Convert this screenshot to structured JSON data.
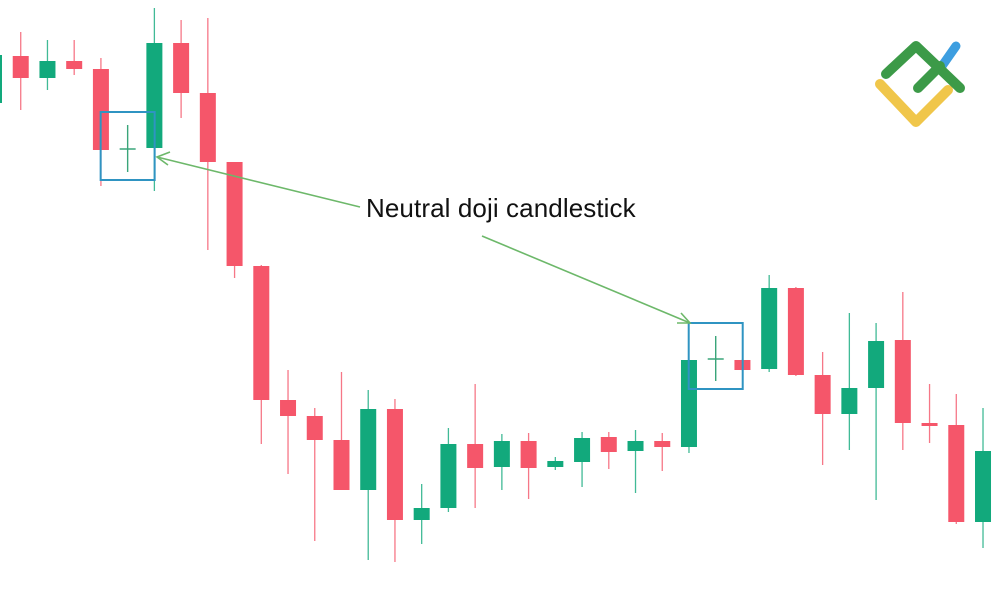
{
  "chart_data": {
    "type": "candlestick",
    "title": "",
    "xlabel": "",
    "ylabel": "",
    "axes_visible": false,
    "grid": false,
    "ohlc_order": [
      "open",
      "high",
      "low",
      "close"
    ],
    "candles": [
      [
        497,
        548,
        494,
        545
      ],
      [
        544,
        568,
        490,
        522
      ],
      [
        522,
        560,
        510,
        539
      ],
      [
        539,
        560,
        525,
        531
      ],
      [
        531,
        542,
        414,
        450
      ],
      [
        451,
        475,
        428,
        451
      ],
      [
        452,
        592,
        409,
        557
      ],
      [
        557,
        580,
        482,
        507
      ],
      [
        507,
        582,
        350,
        438
      ],
      [
        438,
        438,
        322,
        334
      ],
      [
        334,
        335,
        156,
        200
      ],
      [
        200,
        230,
        126,
        184
      ],
      [
        184,
        192,
        59,
        160
      ],
      [
        160,
        228,
        110,
        110
      ],
      [
        110,
        210,
        40,
        191
      ],
      [
        191,
        201,
        38,
        80
      ],
      [
        80,
        116,
        56,
        92
      ],
      [
        92,
        172,
        88,
        156
      ],
      [
        156,
        216,
        92,
        132
      ],
      [
        133,
        166,
        110,
        159
      ],
      [
        159,
        167,
        101,
        132
      ],
      [
        133,
        143,
        130,
        139
      ],
      [
        138,
        168,
        113,
        162
      ],
      [
        163,
        168,
        131,
        148
      ],
      [
        149,
        170,
        107,
        159
      ],
      [
        159,
        167,
        129,
        153
      ],
      [
        153,
        240,
        147,
        240
      ],
      [
        241,
        264,
        219,
        241
      ],
      [
        240,
        241,
        229,
        230
      ],
      [
        231,
        325,
        228,
        312
      ],
      [
        312,
        313,
        224,
        225
      ],
      [
        225,
        248,
        135,
        186
      ],
      [
        186,
        287,
        150,
        212
      ],
      [
        212,
        277,
        100,
        259
      ],
      [
        260,
        308,
        150,
        177
      ],
      [
        177,
        216,
        157,
        175
      ],
      [
        175,
        206,
        76,
        78
      ],
      [
        78,
        192,
        52,
        149
      ]
    ],
    "highlighted_doji_indices": [
      5,
      27
    ],
    "annotations": [
      {
        "text": "Neutral doji candlestick",
        "points_to": [
          5,
          27
        ]
      }
    ],
    "colors": {
      "bullish": "#12a97c",
      "bearish": "#f5566a",
      "doji": "#3aa57a",
      "highlight_box": "#2f94c2",
      "arrow": "#6db86a"
    }
  },
  "logo": {
    "name": "logo-icon",
    "colors": {
      "green": "#3c9a48",
      "yellow": "#f0c64a",
      "blue": "#3d9ee0"
    }
  }
}
